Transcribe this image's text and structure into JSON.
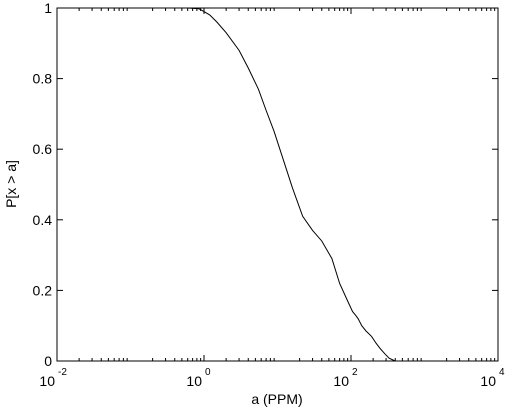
{
  "chart_data": {
    "type": "line",
    "title": "",
    "xlabel": "a (PPM)",
    "ylabel": "P[x > a]",
    "xscale": "log",
    "xlim": [
      0.01,
      10000
    ],
    "ylim": [
      0,
      1
    ],
    "grid": false,
    "x_ticks": [
      {
        "base": "10",
        "exp": "-2",
        "value": 0.01
      },
      {
        "base": "10",
        "exp": "0",
        "value": 1
      },
      {
        "base": "10",
        "exp": "2",
        "value": 100
      },
      {
        "base": "10",
        "exp": "4",
        "value": 10000
      }
    ],
    "y_ticks": [
      "0",
      "0.2",
      "0.4",
      "0.6",
      "0.8",
      "1"
    ],
    "series": [
      {
        "color": "#000000",
        "x": [
          0.3,
          0.6,
          0.85,
          1.0,
          1.2,
          1.5,
          2.0,
          3.0,
          4.0,
          5.5,
          7.0,
          9.0,
          12,
          16,
          22,
          30,
          40,
          55,
          70,
          90,
          105,
          115,
          125,
          140,
          160,
          190,
          220,
          250,
          290,
          330,
          400
        ],
        "y": [
          1.0,
          1.0,
          0.998,
          0.99,
          0.98,
          0.96,
          0.93,
          0.88,
          0.83,
          0.77,
          0.71,
          0.65,
          0.57,
          0.49,
          0.41,
          0.37,
          0.34,
          0.29,
          0.22,
          0.17,
          0.14,
          0.13,
          0.12,
          0.1,
          0.085,
          0.07,
          0.05,
          0.035,
          0.02,
          0.008,
          0.0
        ]
      }
    ]
  }
}
